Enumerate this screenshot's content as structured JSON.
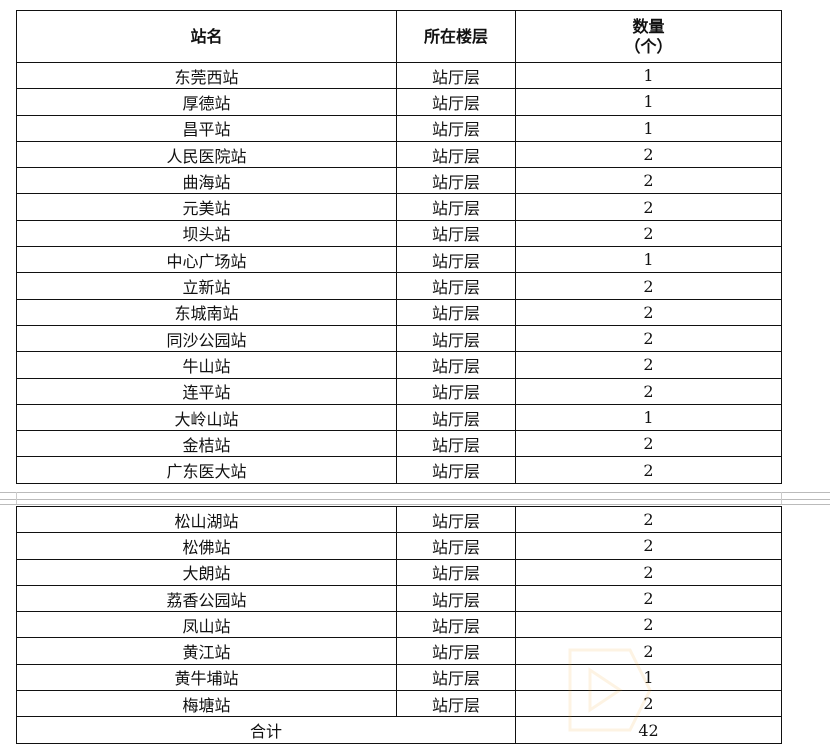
{
  "headers": {
    "name": "站名",
    "floor": "所在楼层",
    "count": "数量\n（个）",
    "count_line1": "数量",
    "count_line2": "（个）"
  },
  "table1_rows": [
    {
      "name": "东莞西站",
      "floor": "站厅层",
      "count": "1"
    },
    {
      "name": "厚德站",
      "floor": "站厅层",
      "count": "1"
    },
    {
      "name": "昌平站",
      "floor": "站厅层",
      "count": "1"
    },
    {
      "name": "人民医院站",
      "floor": "站厅层",
      "count": "2"
    },
    {
      "name": "曲海站",
      "floor": "站厅层",
      "count": "2"
    },
    {
      "name": "元美站",
      "floor": "站厅层",
      "count": "2"
    },
    {
      "name": "坝头站",
      "floor": "站厅层",
      "count": "2"
    },
    {
      "name": "中心广场站",
      "floor": "站厅层",
      "count": "1"
    },
    {
      "name": "立新站",
      "floor": "站厅层",
      "count": "2"
    },
    {
      "name": "东城南站",
      "floor": "站厅层",
      "count": "2"
    },
    {
      "name": "同沙公园站",
      "floor": "站厅层",
      "count": "2"
    },
    {
      "name": "牛山站",
      "floor": "站厅层",
      "count": "2"
    },
    {
      "name": "连平站",
      "floor": "站厅层",
      "count": "2"
    },
    {
      "name": "大岭山站",
      "floor": "站厅层",
      "count": "1"
    },
    {
      "name": "金桔站",
      "floor": "站厅层",
      "count": "2"
    },
    {
      "name": "广东医大站",
      "floor": "站厅层",
      "count": "2"
    }
  ],
  "table2_rows": [
    {
      "name": "松山湖站",
      "floor": "站厅层",
      "count": "2"
    },
    {
      "name": "松佛站",
      "floor": "站厅层",
      "count": "2"
    },
    {
      "name": "大朗站",
      "floor": "站厅层",
      "count": "2"
    },
    {
      "name": "荔香公园站",
      "floor": "站厅层",
      "count": "2"
    },
    {
      "name": "凤山站",
      "floor": "站厅层",
      "count": "2"
    },
    {
      "name": "黄江站",
      "floor": "站厅层",
      "count": "2"
    },
    {
      "name": "黄牛埔站",
      "floor": "站厅层",
      "count": "1"
    },
    {
      "name": "梅塘站",
      "floor": "站厅层",
      "count": "2"
    }
  ],
  "total": {
    "label": "合计",
    "count": "42"
  }
}
